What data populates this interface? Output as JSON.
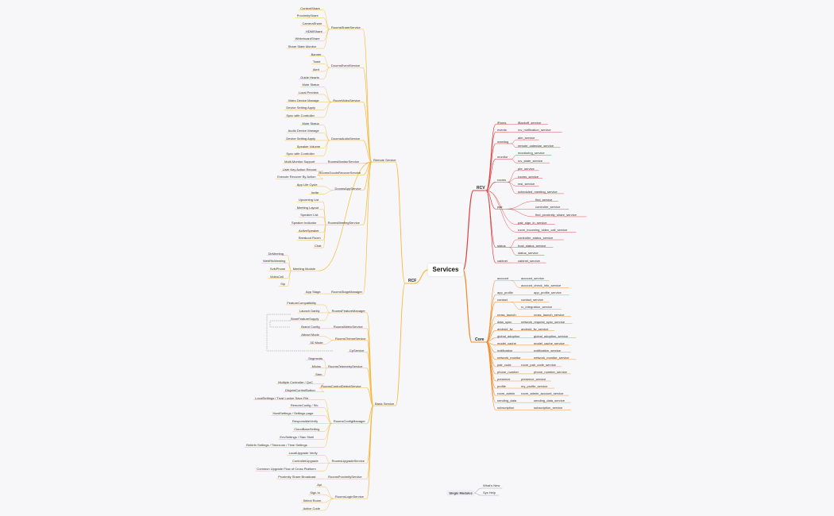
{
  "title": "Services",
  "rcf": {
    "label": "RCF",
    "remote_service": {
      "label": "Remote Service",
      "groups": [
        {
          "label": "RoomsShareService",
          "items": [
            "ContentShare",
            "ProximityShare",
            "CameraShare",
            "HDMIShare",
            "WhiteboardShare",
            "Share State Monitor"
          ]
        },
        {
          "label": "DoomsEventService",
          "items": [
            "Banner",
            "Toast",
            "Alert",
            "Guide Hearts"
          ]
        },
        {
          "label": "RoomVideoService",
          "items": [
            "Mute Status",
            "Local Preview",
            "Video Device Manage",
            "Device Setting Apply",
            "Sync with Controller"
          ]
        },
        {
          "label": "DoomsAudioService",
          "items": [
            "Mute Status",
            "Audio Device Manage",
            "Device Setting Apply",
            "Speaker Volume",
            "Sync with Controller"
          ]
        },
        {
          "label": "RoomsMonitorService",
          "items": [
            "Multi-Monitor Support"
          ]
        },
        {
          "label": "RoomsGoodsRecoverService",
          "items": [
            "User Key Action Record",
            "Execute Recover By Action"
          ]
        },
        {
          "label": "DoomsAppService",
          "items": [
            "App Life Cycle",
            "Invite"
          ]
        },
        {
          "label": "RoomsMeetingService",
          "items": [
            "Upcoming List",
            "Meeting Layout",
            "Speaker List",
            "Speaker Indicator",
            "ActiveSpeaker",
            "Breakout Room",
            "Chat"
          ]
        },
        {
          "label": "Meeting Module",
          "items": [
            "DirMeeting",
            "WebRtcMeeting",
            "SvfcPhone",
            "VideoCell",
            "Sip"
          ]
        },
        {
          "label": "RoomsStageManager",
          "items": [
            "App Stage"
          ]
        }
      ]
    },
    "basic_service": {
      "label": "Basic Service",
      "groups": [
        {
          "label": "RoomsFeatureManager",
          "items": [
            "FeatureCompatibility",
            "Launch Darkly",
            "StoreFeatureSupply"
          ]
        },
        {
          "label": "RoomsMetricService",
          "items": [
            "Brand Config"
          ]
        },
        {
          "label": "RoomsThemeService",
          "items": [
            "Attract Mode",
            "3D Mode"
          ]
        },
        {
          "label": "CpService",
          "items": []
        },
        {
          "label": "RoomsTelemetryService",
          "items": [
            "Segments",
            "Mixins",
            "Strm"
          ]
        },
        {
          "label": "RoomsControlDetectService",
          "items": [
            "Multiple Controller / QoC",
            "DisjointControlButton"
          ]
        },
        {
          "label": "RoomsConfigManager",
          "items": [
            "LocalSettings / Trust Locker Save File",
            "RemoteConfig / Sfc",
            "HardSettings / Settings page",
            "ResponsibleVerify",
            "CloudBaseSetting",
            "EnvSettings / Stav Shell",
            "Rebirth Settings / Timezone / Time Settings"
          ]
        },
        {
          "label": "RoomsUpgradeService",
          "items": [
            "LocalUpgrade Verify",
            "ControllerUpgrade",
            "Common Upgrade Flow of Cross Platform"
          ]
        },
        {
          "label": "RoomsProximityService",
          "items": [
            "Proximity Share Broadcast"
          ]
        },
        {
          "label": "RoomsLoginService",
          "items": [
            "Api",
            "Sign In",
            "Select Room",
            "Active Code"
          ]
        }
      ]
    }
  },
  "rcv": {
    "label": "RCV",
    "groups": [
      {
        "label": "iRoms",
        "items": [
          "iBackoff_service"
        ]
      },
      {
        "label": "events",
        "items": [
          "rcv_notification_service"
        ]
      },
      {
        "label": "meeting",
        "items": [
          "aim_service",
          "remote_calendar_service"
        ]
      },
      {
        "label": "monitor",
        "items": [
          "monitoring_service",
          "rcv_state_service"
        ]
      },
      {
        "label": "rooms",
        "items": [
          "pbr_service",
          "rooms_service",
          "msi_service",
          "scheduled_meeting_service"
        ]
      },
      {
        "label": "pair",
        "items": [
          "find_service",
          "controller_service",
          "find_proximity_share_service"
        ]
      },
      {
        "label": "",
        "items": [
          "pair_sign_in_service",
          "room_incoming_video_call_service"
        ]
      },
      {
        "label": "status",
        "items": [
          "controller_status_service",
          "host_status_service",
          "status_service"
        ]
      },
      {
        "label": "cabinet",
        "items": [
          "cabinet_service"
        ]
      }
    ]
  },
  "core": {
    "label": "Core",
    "rows": [
      [
        "account",
        "account_service"
      ],
      [
        "",
        "account_check_info_service"
      ],
      [
        "app_profile",
        "app_profile_service"
      ],
      [
        "contact",
        "contact_service"
      ],
      [
        "",
        "rc_integration_service"
      ],
      [
        "cross_launch",
        "cross_launch_service"
      ],
      [
        "data_sync",
        "network_request_sync_service"
      ],
      [
        "android_fw",
        "android_fw_service"
      ],
      [
        "global_adoption",
        "global_adoption_service"
      ],
      [
        "model_cache",
        "model_cache_service"
      ],
      [
        "notification",
        "notification_service"
      ],
      [
        "network_monitor",
        "network_monitor_service"
      ],
      [
        "pair_code",
        "room_pair_code_service"
      ],
      [
        "phone_number",
        "phone_number_service"
      ],
      [
        "presence",
        "presence_service"
      ],
      [
        "profile",
        "my_profile_service"
      ],
      [
        "room_admin",
        "room_admin_account_service"
      ],
      [
        "sending_data",
        "sending_data_service"
      ],
      [
        "subscription",
        "subscription_service"
      ]
    ]
  },
  "single_modules": {
    "label": "Single Modules",
    "items": [
      "What's New",
      "Sys Help"
    ]
  },
  "colors": {
    "rcf": "#f5b93c",
    "rcv": "#e03c3c",
    "core": "#f08c28",
    "single": "#9a9aa8",
    "dashed": "#8a8a96"
  }
}
